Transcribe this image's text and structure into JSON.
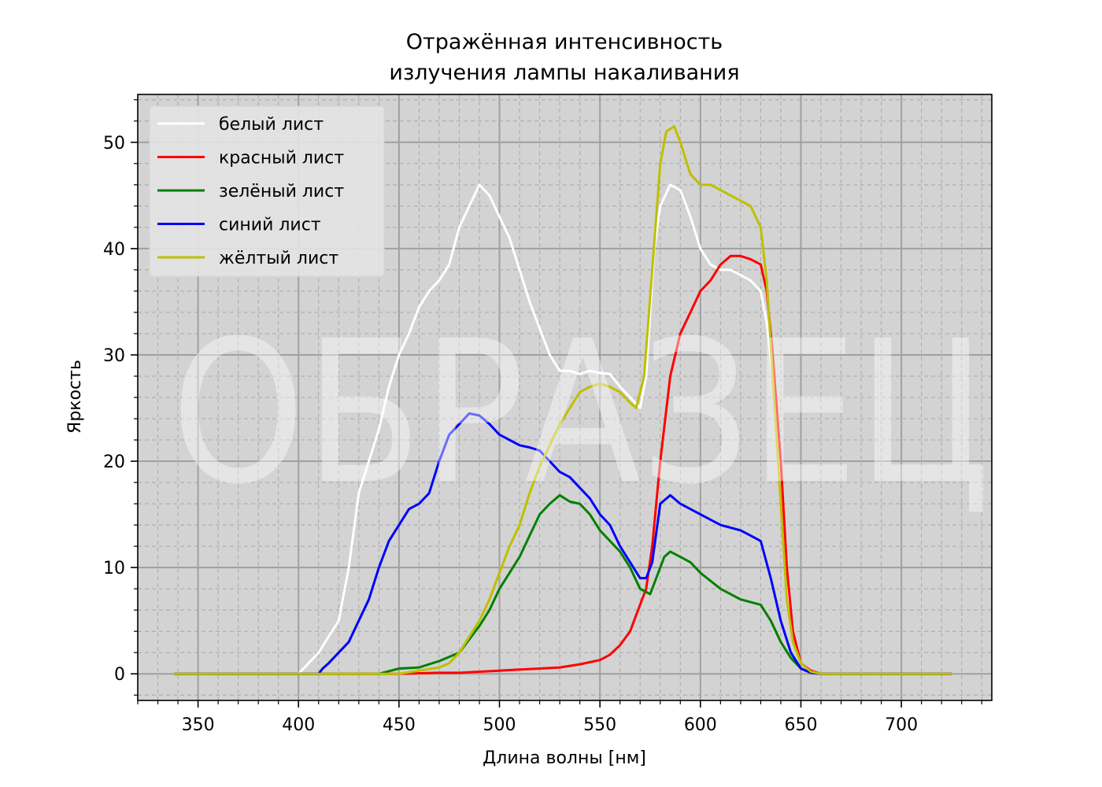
{
  "chart_data": {
    "type": "line",
    "title": [
      "Отражённая интенсивность",
      "излучения лампы накаливания"
    ],
    "xlabel": "Длина волны [нм]",
    "ylabel": "Яркость",
    "xlim": [
      320,
      745
    ],
    "ylim": [
      -2.5,
      54.5
    ],
    "xticks": [
      350,
      400,
      450,
      500,
      550,
      600,
      650,
      700
    ],
    "yticks": [
      0,
      10,
      20,
      30,
      40,
      50
    ],
    "xminor_step": 10,
    "yminor_step": 2,
    "grid": true,
    "background": "#d3d3d3",
    "legend_position": "upper left",
    "watermark": "ОБРАЗЕЦ",
    "series": [
      {
        "name": "белый лист",
        "color": "#ffffff",
        "x": [
          338,
          400,
          405,
          410,
          415,
          420,
          425,
          430,
          435,
          440,
          445,
          450,
          455,
          460,
          465,
          470,
          475,
          480,
          485,
          490,
          495,
          500,
          505,
          510,
          515,
          520,
          525,
          530,
          535,
          540,
          545,
          550,
          555,
          560,
          565,
          570,
          573,
          577,
          580,
          585,
          590,
          595,
          600,
          605,
          610,
          615,
          620,
          625,
          630,
          633,
          636,
          640,
          643,
          646,
          650,
          655,
          660,
          665,
          670,
          725
        ],
        "y": [
          0,
          0,
          1,
          2,
          3.5,
          5,
          10,
          17,
          20,
          23,
          27,
          30,
          32,
          34.5,
          36,
          37,
          38.5,
          42,
          44,
          46,
          45,
          43,
          41,
          38,
          35,
          32.5,
          30,
          28.5,
          28.5,
          28.2,
          28.5,
          28.3,
          28.2,
          27,
          26,
          25,
          28,
          40,
          44,
          46,
          45.5,
          43,
          40,
          38.5,
          38,
          38,
          37.5,
          37,
          36,
          33,
          28,
          18,
          8,
          3,
          1,
          0.3,
          0,
          0,
          0,
          0
        ]
      },
      {
        "name": "красный лист",
        "color": "#ff0000",
        "x": [
          338,
          450,
          470,
          480,
          490,
          500,
          510,
          520,
          530,
          540,
          550,
          555,
          560,
          565,
          570,
          573,
          576,
          580,
          585,
          590,
          595,
          600,
          605,
          610,
          615,
          620,
          625,
          630,
          633,
          636,
          640,
          643,
          646,
          650,
          655,
          660,
          665,
          670,
          725
        ],
        "y": [
          0,
          0,
          0.1,
          0.1,
          0.2,
          0.3,
          0.4,
          0.5,
          0.6,
          0.9,
          1.3,
          1.8,
          2.7,
          4,
          6.5,
          8,
          12,
          20,
          28,
          32,
          34,
          36,
          37,
          38.5,
          39.3,
          39.3,
          39,
          38.5,
          36,
          30,
          20,
          10,
          4,
          1,
          0.3,
          0,
          0,
          0,
          0
        ]
      },
      {
        "name": "зелёный лист",
        "color": "#008000",
        "x": [
          338,
          440,
          450,
          460,
          470,
          480,
          490,
          495,
          500,
          505,
          510,
          515,
          520,
          525,
          530,
          535,
          540,
          545,
          550,
          555,
          560,
          565,
          570,
          575,
          578,
          582,
          585,
          590,
          595,
          600,
          610,
          620,
          630,
          635,
          640,
          645,
          650,
          655,
          660,
          725
        ],
        "y": [
          0,
          0,
          0.5,
          0.6,
          1.2,
          2,
          4.5,
          6,
          8,
          9.5,
          11,
          13,
          15,
          16,
          16.8,
          16.2,
          16,
          15,
          13.5,
          12.5,
          11.5,
          10,
          8,
          7.5,
          9,
          11,
          11.5,
          11,
          10.5,
          9.5,
          8,
          7,
          6.5,
          5,
          3,
          1.5,
          0.5,
          0.1,
          0,
          0
        ]
      },
      {
        "name": "синий лист",
        "color": "#0000ff",
        "x": [
          338,
          410,
          412,
          415,
          420,
          425,
          430,
          435,
          440,
          445,
          450,
          455,
          460,
          465,
          470,
          475,
          480,
          485,
          490,
          495,
          500,
          505,
          510,
          515,
          520,
          525,
          530,
          535,
          540,
          545,
          550,
          555,
          560,
          565,
          570,
          573,
          576,
          580,
          585,
          590,
          595,
          600,
          610,
          620,
          625,
          630,
          635,
          640,
          645,
          650,
          655,
          660,
          665,
          725
        ],
        "y": [
          0,
          0,
          0.5,
          1,
          2,
          3,
          5,
          7,
          10,
          12.5,
          14,
          15.5,
          16,
          17,
          20,
          22.5,
          23.5,
          24.5,
          24.3,
          23.5,
          22.5,
          22,
          21.5,
          21.3,
          21,
          20,
          19,
          18.5,
          17.5,
          16.5,
          15,
          14,
          12,
          10.5,
          9,
          9,
          10.5,
          16,
          16.8,
          16,
          15.5,
          15,
          14,
          13.5,
          13,
          12.5,
          9,
          5,
          2,
          0.5,
          0.1,
          0,
          0,
          0
        ]
      },
      {
        "name": "жёлтый лист",
        "color": "#bfbf00",
        "x": [
          338,
          450,
          460,
          470,
          475,
          480,
          485,
          490,
          495,
          500,
          505,
          510,
          515,
          520,
          525,
          530,
          535,
          540,
          545,
          550,
          555,
          560,
          565,
          568,
          572,
          576,
          580,
          583,
          587,
          590,
          595,
          600,
          605,
          610,
          615,
          620,
          625,
          630,
          633,
          636,
          640,
          643,
          646,
          650,
          655,
          660,
          665,
          725
        ],
        "y": [
          0,
          0,
          0.3,
          0.6,
          1,
          2,
          3.5,
          5,
          7,
          9.5,
          12,
          14,
          17,
          19.5,
          21.5,
          23.5,
          25,
          26.5,
          27,
          27.3,
          27,
          26.5,
          25.5,
          25,
          28,
          38,
          48,
          51,
          51.5,
          50,
          47,
          46,
          46,
          45.5,
          45,
          44.5,
          44,
          42,
          37,
          28,
          16,
          7,
          3,
          1,
          0.2,
          0,
          0,
          0
        ]
      }
    ]
  }
}
